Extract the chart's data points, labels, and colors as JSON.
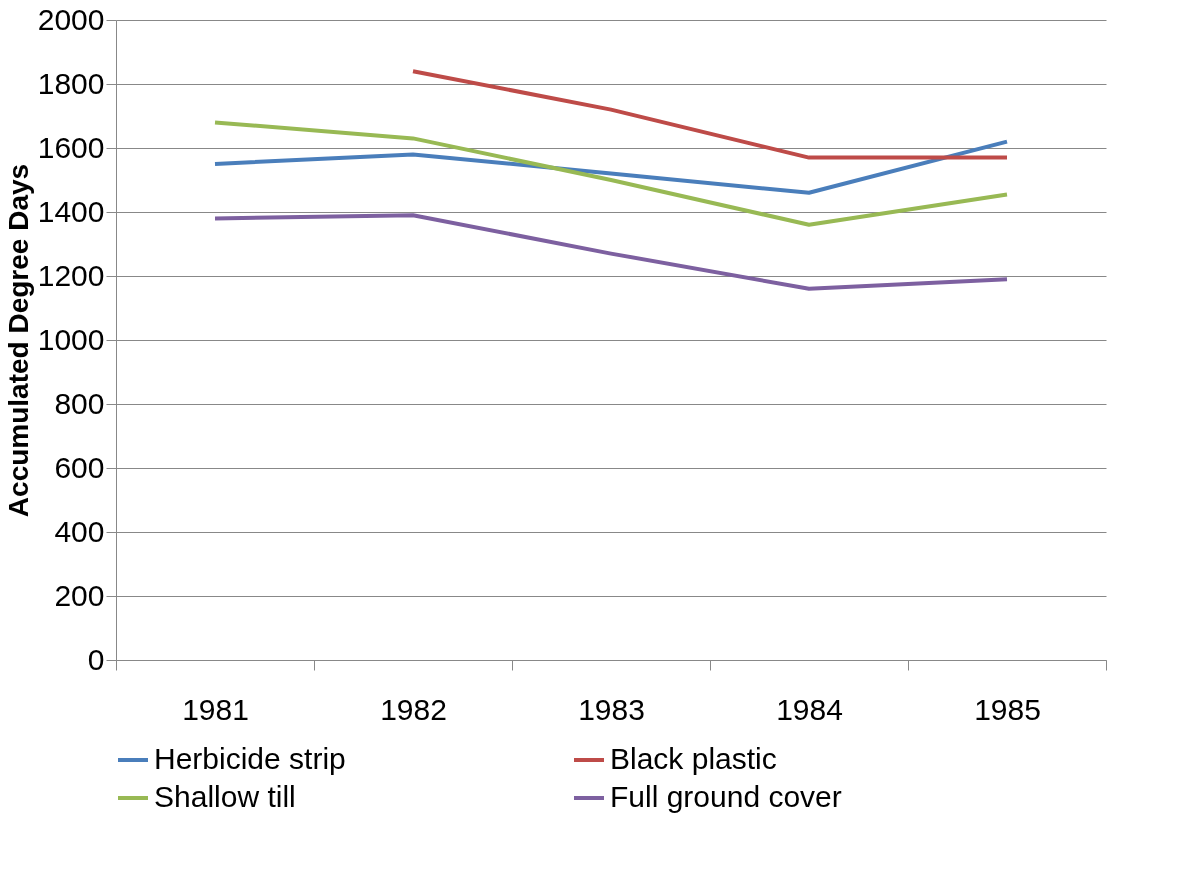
{
  "chart_data": {
    "type": "line",
    "ylabel": "Accumulated Degree Days",
    "categories": [
      "1981",
      "1982",
      "1983",
      "1984",
      "1985"
    ],
    "series": [
      {
        "name": "Herbicide strip",
        "color": "#4a7ebb",
        "values": [
          1550,
          1580,
          1520,
          1460,
          1620
        ]
      },
      {
        "name": "Black plastic",
        "color": "#be4b48",
        "values": [
          null,
          1840,
          1720,
          1570,
          1570
        ]
      },
      {
        "name": "Shallow till",
        "color": "#98b954",
        "values": [
          1680,
          1630,
          1500,
          1360,
          1455
        ]
      },
      {
        "name": "Full ground cover",
        "color": "#7d60a0",
        "values": [
          1380,
          1390,
          1270,
          1160,
          1190
        ]
      }
    ],
    "ylim": [
      0,
      2000
    ],
    "yticks": [
      0,
      200,
      400,
      600,
      800,
      1000,
      1200,
      1400,
      1600,
      1800,
      2000
    ],
    "grid": "y",
    "legend": "bottom",
    "marker": "none",
    "line_style": "solid"
  }
}
